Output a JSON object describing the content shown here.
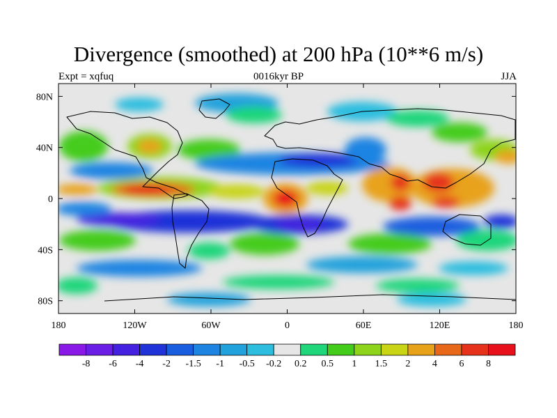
{
  "title": "Divergence (smoothed) at 200 hPa (10**6 m/s)",
  "subtitle_left": "Expt = xqfuq",
  "subtitle_center": "0016kyr BP",
  "subtitle_right": "JJA",
  "map": {
    "projection": "cylindrical-equidistant",
    "lat_ticks": [
      {
        "value": 80,
        "label": "80N"
      },
      {
        "value": 40,
        "label": "40N"
      },
      {
        "value": 0,
        "label": "0"
      },
      {
        "value": -40,
        "label": "40S"
      },
      {
        "value": -80,
        "label": "80S"
      }
    ],
    "lon_ticks": [
      {
        "value": -180,
        "label": "180"
      },
      {
        "value": -120,
        "label": "120W"
      },
      {
        "value": -60,
        "label": "60W"
      },
      {
        "value": 0,
        "label": "0"
      },
      {
        "value": 60,
        "label": "60E"
      },
      {
        "value": 120,
        "label": "120E"
      },
      {
        "value": 180,
        "label": "180"
      }
    ],
    "lat_range": [
      -90,
      90
    ],
    "lon_range": [
      -180,
      180
    ]
  },
  "colorbar": {
    "levels": [
      "-8",
      "-6",
      "-4",
      "-2",
      "-1.5",
      "-1",
      "-0.5",
      "-0.2",
      "0.2",
      "0.5",
      "1",
      "1.5",
      "2",
      "4",
      "6",
      "8"
    ],
    "colors": [
      "#8a19e8",
      "#6a1ee6",
      "#4420e0",
      "#1f33d8",
      "#1a5ee0",
      "#1e84e2",
      "#22a2dc",
      "#2cbddf",
      "#e6e6e6",
      "#1fd67a",
      "#44cc1a",
      "#8ed41a",
      "#c8d414",
      "#e8a21a",
      "#e8681a",
      "#e6321a",
      "#e8101a"
    ]
  }
}
